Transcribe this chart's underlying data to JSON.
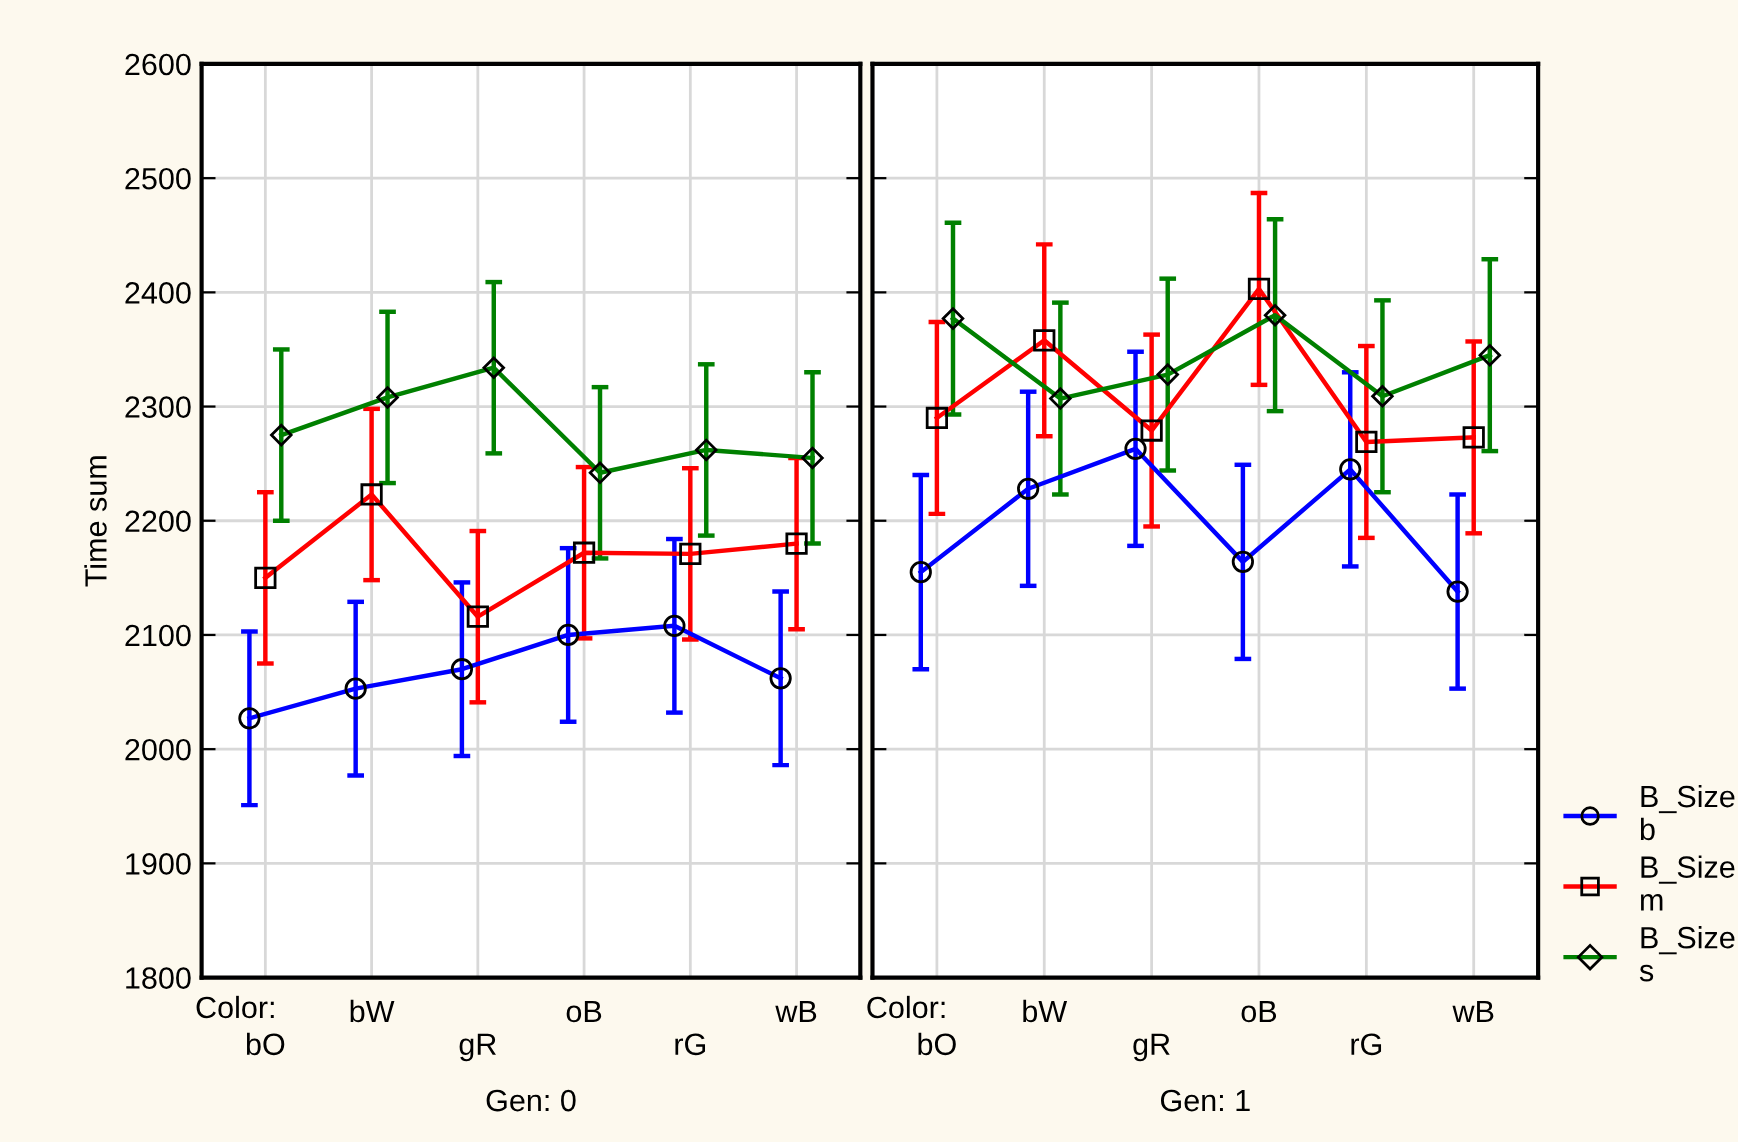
{
  "chart_data": [
    {
      "type": "line",
      "categories": [
        "bO",
        "bW",
        "gR",
        "oB",
        "rG",
        "wB"
      ],
      "xlabel": "Gen: 0",
      "ylabel": "Time sum",
      "annotations": [
        "Color:"
      ],
      "ylim": [
        1800,
        2600
      ],
      "yticks": [
        1800,
        1900,
        2000,
        2100,
        2200,
        2300,
        2400,
        2500,
        2600
      ],
      "grid": true,
      "series": [
        {
          "color": "#0000ff",
          "marker": "circle",
          "values": [
            2027,
            2053,
            2070,
            2100,
            2108,
            2062
          ],
          "errors": [
            76,
            76,
            76,
            76,
            76,
            76
          ]
        },
        {
          "color": "#ff0000",
          "marker": "square",
          "values": [
            2150,
            2223,
            2116,
            2172,
            2171,
            2180
          ],
          "errors": [
            75,
            75,
            75,
            75,
            75,
            75
          ]
        },
        {
          "color": "#008000",
          "marker": "diamond",
          "values": [
            2275,
            2308,
            2334,
            2242,
            2262,
            2255
          ],
          "errors": [
            75,
            75,
            75,
            75,
            75,
            75
          ]
        }
      ]
    },
    {
      "type": "line",
      "categories": [
        "bO",
        "bW",
        "gR",
        "oB",
        "rG",
        "wB"
      ],
      "xlabel": "Gen: 1",
      "annotations": [
        "Color:"
      ],
      "ylim": [
        1800,
        2600
      ],
      "yticks": [
        1800,
        1900,
        2000,
        2100,
        2200,
        2300,
        2400,
        2500,
        2600
      ],
      "tick_labels": "x",
      "grid": true,
      "legend": "right",
      "series": [
        {
          "name": "B_Size b",
          "color": "#0000ff",
          "marker": "circle",
          "values": [
            2155,
            2228,
            2263,
            2164,
            2245,
            2138
          ],
          "errors": [
            85,
            85,
            85,
            85,
            85,
            85
          ]
        },
        {
          "name": "B_Size m",
          "color": "#ff0000",
          "marker": "square",
          "values": [
            2290,
            2358,
            2279,
            2403,
            2269,
            2273
          ],
          "errors": [
            84,
            84,
            84,
            84,
            84,
            84
          ]
        },
        {
          "name": "B_Size s",
          "color": "#008000",
          "marker": "diamond",
          "values": [
            2377,
            2307,
            2328,
            2380,
            2309,
            2345
          ],
          "errors": [
            84,
            84,
            84,
            84,
            84,
            84
          ]
        }
      ]
    }
  ]
}
